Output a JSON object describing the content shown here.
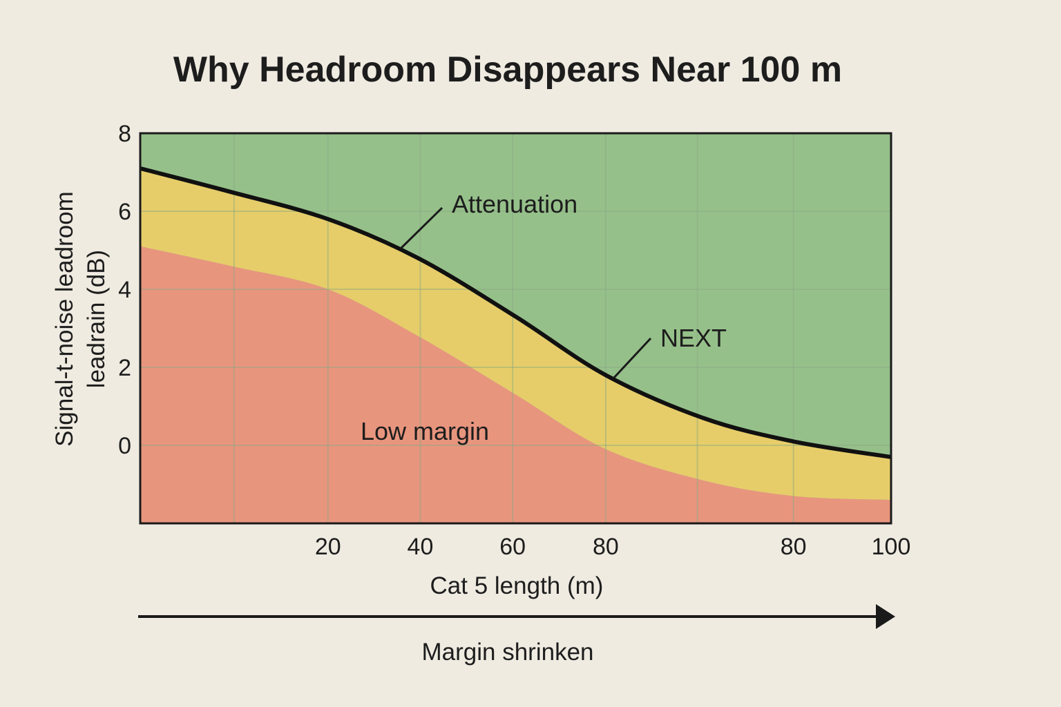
{
  "chart_data": {
    "type": "area",
    "title": "Why Headroom Disappears Near 100 m",
    "xlabel": "Cat 5 length (m)",
    "ylabel_lines": [
      "Signal-t-noise leadroom",
      "leadrain (dB)"
    ],
    "xlim": [
      0,
      100
    ],
    "ylim": [
      -2,
      8
    ],
    "y_ticks": [
      "0",
      "2",
      "4",
      "6",
      "8"
    ],
    "x_ticks": [
      {
        "label": "20",
        "x": 25
      },
      {
        "label": "40",
        "x": 37.3
      },
      {
        "label": "60",
        "x": 49.6
      },
      {
        "label": "80",
        "x": 62
      },
      {
        "label": "80",
        "x": 87
      },
      {
        "label": "100",
        "x": 100
      }
    ],
    "grid": true,
    "series": [
      {
        "name": "NEXT",
        "x": [
          0,
          12,
          25,
          37,
          50,
          62,
          75,
          87,
          100
        ],
        "values": [
          7.1,
          6.5,
          5.8,
          4.8,
          3.3,
          1.8,
          0.7,
          0.1,
          -0.3
        ]
      },
      {
        "x": [
          0,
          12,
          25,
          37,
          50,
          62,
          75,
          87,
          100
        ],
        "values": [
          5.1,
          4.6,
          4.0,
          2.8,
          1.3,
          -0.1,
          -0.9,
          -1.3,
          -1.4
        ]
      }
    ],
    "zones": [
      {
        "name": "Low margin",
        "color": "#e8957e"
      },
      {
        "name": "",
        "color": "#e6cd6a"
      },
      {
        "name": "",
        "color": "#96c08a"
      }
    ],
    "annotations": [
      "Attenuation",
      "NEXT",
      "Low margin"
    ],
    "arrow_label": "Margin shrinken",
    "colors": {
      "background": "#efebe1",
      "high": "#96c08a",
      "mid": "#e6cd6a",
      "low": "#e8957e",
      "curve": "#111111",
      "grid": "#8aa882"
    }
  }
}
